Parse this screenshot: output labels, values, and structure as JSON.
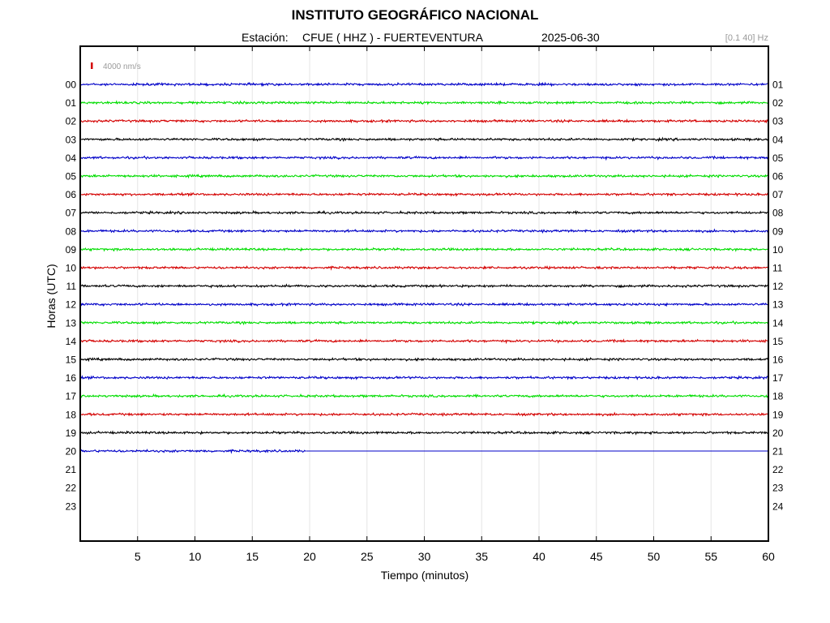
{
  "header": {
    "title": "INSTITUTO GEOGRÁFICO NACIONAL",
    "station_prefix": "Estación:",
    "station": "CFUE ( HHZ ) - FUERTEVENTURA",
    "date": "2025-06-30",
    "filter": "[0.1 40] Hz"
  },
  "colors": {
    "blue": "#0000c8",
    "green": "#00dd00",
    "red": "#d40000",
    "black": "#000000",
    "grid": "#e6e6e6",
    "scale_marker": "#d40000"
  },
  "chart_data": {
    "type": "line",
    "title": "INSTITUTO GEOGRÁFICO NACIONAL",
    "subtitle": "Estación:  CFUE ( HHZ ) - FUERTEVENTURA        2025-06-30",
    "xlabel": "Tiempo (minutos)",
    "ylabel": "Horas (UTC)",
    "xlim": [
      0,
      60
    ],
    "x_ticks": [
      5,
      10,
      15,
      20,
      25,
      30,
      35,
      40,
      45,
      50,
      55,
      60
    ],
    "x_tick_labels": [
      "5",
      "10",
      "15",
      "20",
      "25",
      "30",
      "35",
      "40",
      "45",
      "50",
      "55",
      "60"
    ],
    "grid": true,
    "scale_label": "4000 nm/s",
    "left_hour_labels": [
      "00",
      "01",
      "02",
      "03",
      "04",
      "05",
      "06",
      "07",
      "08",
      "09",
      "10",
      "11",
      "12",
      "13",
      "14",
      "15",
      "16",
      "17",
      "18",
      "19",
      "20",
      "21",
      "22",
      "23"
    ],
    "right_hour_labels": [
      "01",
      "02",
      "03",
      "04",
      "05",
      "06",
      "07",
      "08",
      "09",
      "10",
      "11",
      "12",
      "13",
      "14",
      "15",
      "16",
      "17",
      "18",
      "19",
      "20",
      "21",
      "22",
      "23",
      "24"
    ],
    "traces": [
      {
        "hour": "00",
        "color": "blue",
        "end_minute": 60
      },
      {
        "hour": "01",
        "color": "green",
        "end_minute": 60
      },
      {
        "hour": "02",
        "color": "red",
        "end_minute": 60
      },
      {
        "hour": "03",
        "color": "black",
        "end_minute": 60
      },
      {
        "hour": "04",
        "color": "blue",
        "end_minute": 60
      },
      {
        "hour": "05",
        "color": "green",
        "end_minute": 60
      },
      {
        "hour": "06",
        "color": "red",
        "end_minute": 60
      },
      {
        "hour": "07",
        "color": "black",
        "end_minute": 60
      },
      {
        "hour": "08",
        "color": "blue",
        "end_minute": 60
      },
      {
        "hour": "09",
        "color": "green",
        "end_minute": 60
      },
      {
        "hour": "10",
        "color": "red",
        "end_minute": 60
      },
      {
        "hour": "11",
        "color": "black",
        "end_minute": 60
      },
      {
        "hour": "12",
        "color": "blue",
        "end_minute": 60
      },
      {
        "hour": "13",
        "color": "green",
        "end_minute": 60
      },
      {
        "hour": "14",
        "color": "red",
        "end_minute": 60
      },
      {
        "hour": "15",
        "color": "black",
        "end_minute": 60
      },
      {
        "hour": "16",
        "color": "blue",
        "end_minute": 60
      },
      {
        "hour": "17",
        "color": "green",
        "end_minute": 60
      },
      {
        "hour": "18",
        "color": "red",
        "end_minute": 60
      },
      {
        "hour": "19",
        "color": "black",
        "end_minute": 60
      },
      {
        "hour": "20",
        "color": "blue",
        "end_minute": 19.7
      }
    ]
  }
}
